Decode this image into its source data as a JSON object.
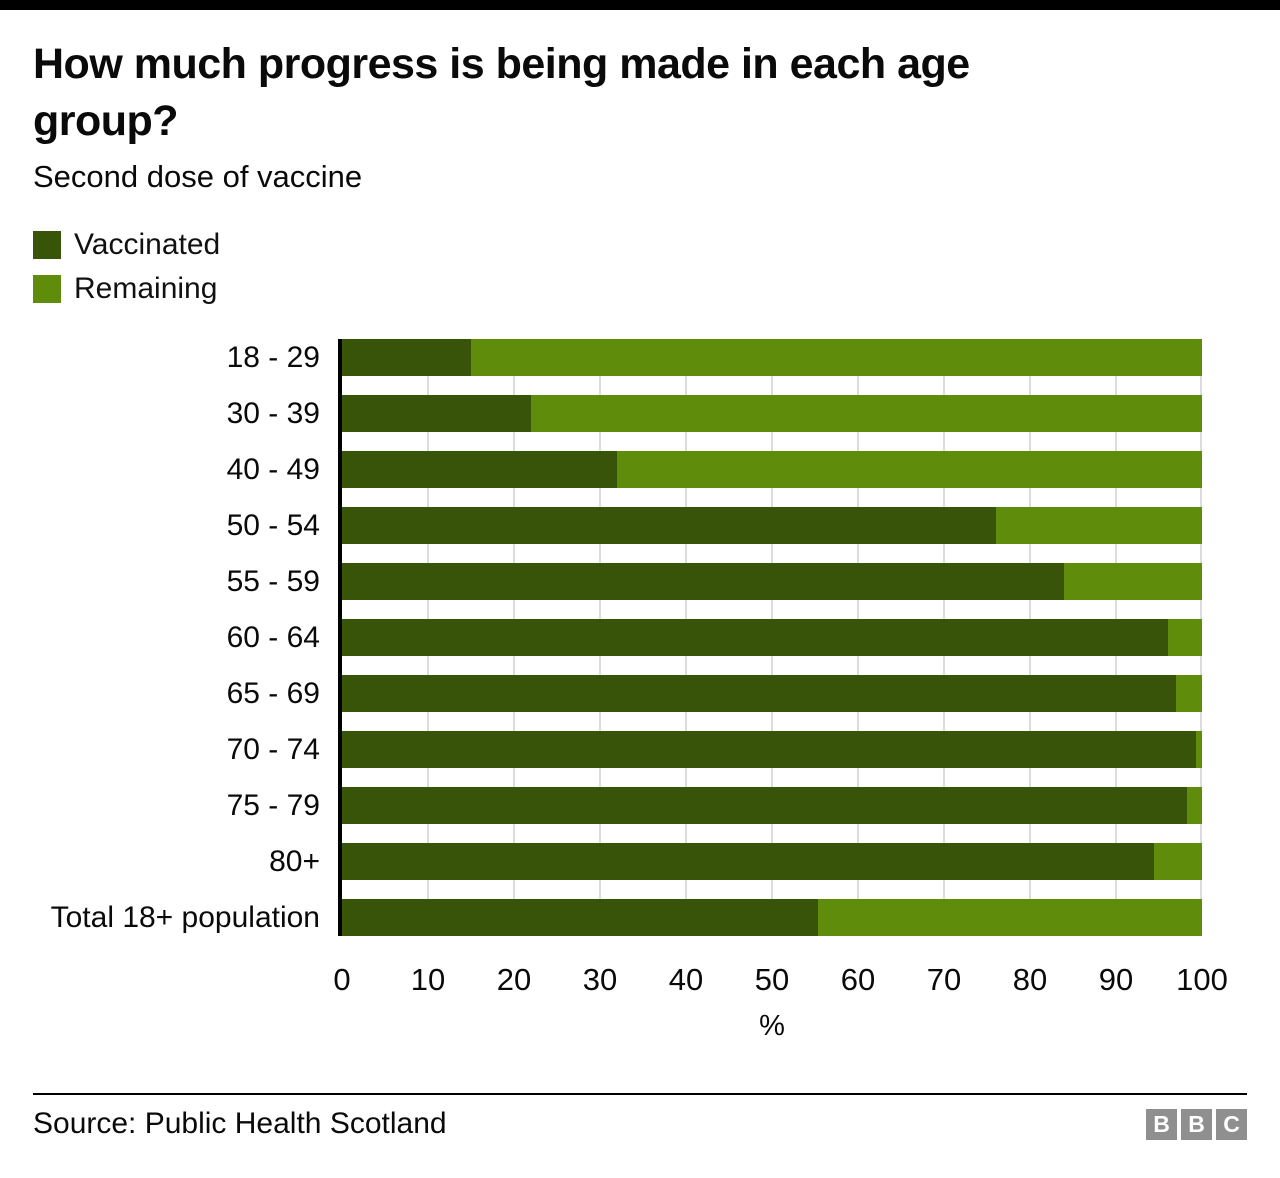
{
  "header": {
    "title_line1": "How much progress is being made in each age",
    "title_line2": "group?",
    "subtitle": "Second dose of vaccine"
  },
  "legend": {
    "items": [
      {
        "label": "Vaccinated",
        "color": "#375408"
      },
      {
        "label": "Remaining",
        "color": "#5f8c0a"
      }
    ]
  },
  "chart_data": {
    "type": "bar",
    "orientation": "horizontal",
    "stacked": true,
    "title": "How much progress is being made in each age group?",
    "subtitle": "Second dose of vaccine",
    "categories": [
      "18 - 29",
      "30 - 39",
      "40 - 49",
      "50 - 54",
      "55 - 59",
      "60 - 64",
      "65 - 69",
      "70 - 74",
      "75 - 79",
      "80+",
      "Total 18+ population"
    ],
    "series": [
      {
        "name": "Vaccinated",
        "color": "#375408",
        "values": [
          15,
          22,
          32,
          76,
          84,
          96,
          97,
          99.3,
          98.2,
          94.4,
          55.4
        ]
      },
      {
        "name": "Remaining",
        "color": "#5f8c0a",
        "values": [
          85,
          78,
          68,
          24,
          16,
          4,
          3,
          0.7,
          1.8,
          5.6,
          44.6
        ]
      }
    ],
    "xlabel": "%",
    "x_ticks": [
      "0",
      "10",
      "20",
      "30",
      "40",
      "50",
      "60",
      "70",
      "80",
      "90",
      "100"
    ],
    "xlim": [
      0,
      100
    ],
    "grid": true,
    "gridline_color": "#dcdcdc",
    "legend_position": "top-left"
  },
  "footer": {
    "source": "Source: Public Health Scotland",
    "logo_letters": [
      "B",
      "B",
      "C"
    ]
  }
}
